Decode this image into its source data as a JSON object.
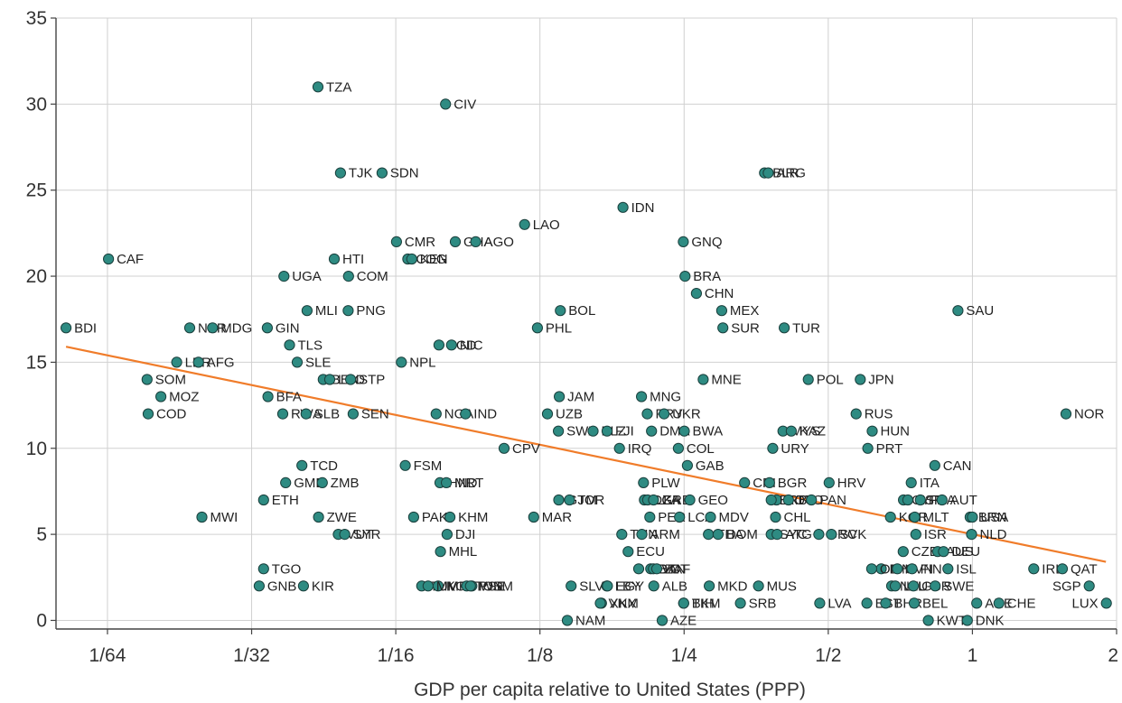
{
  "chart_data": {
    "type": "scatter",
    "title": "",
    "xlabel": "GDP per capita relative to United States (PPP)",
    "ylabel": "",
    "x_scale": "log2",
    "xlim": [
      0.0122,
      2
    ],
    "ylim": [
      -0.5,
      35
    ],
    "y_ticks": [
      0,
      5,
      10,
      15,
      20,
      25,
      30,
      35
    ],
    "x_ticks": [
      {
        "value": 0.015625,
        "label": "1/64"
      },
      {
        "value": 0.03125,
        "label": "1/32"
      },
      {
        "value": 0.0625,
        "label": "1/16"
      },
      {
        "value": 0.125,
        "label": "1/8"
      },
      {
        "value": 0.25,
        "label": "1/4"
      },
      {
        "value": 0.5,
        "label": "1/2"
      },
      {
        "value": 1,
        "label": "1"
      },
      {
        "value": 2,
        "label": "2"
      }
    ],
    "grid": true,
    "colors": {
      "points": "#2e8b82",
      "trend": "#f07c2a"
    },
    "trendline": {
      "x": [
        0.0128,
        1.9
      ],
      "y": [
        15.9,
        3.4
      ]
    },
    "points": [
      {
        "label": "BDI",
        "x": 0.0128,
        "y": 17
      },
      {
        "label": "CAF",
        "x": 0.0157,
        "y": 21
      },
      {
        "label": "SOM",
        "x": 0.0189,
        "y": 14
      },
      {
        "label": "MOZ",
        "x": 0.0202,
        "y": 13
      },
      {
        "label": "COD",
        "x": 0.019,
        "y": 12
      },
      {
        "label": "LBR",
        "x": 0.0218,
        "y": 15
      },
      {
        "label": "NER",
        "x": 0.0232,
        "y": 17
      },
      {
        "label": "AFG",
        "x": 0.0242,
        "y": 15
      },
      {
        "label": "MDG",
        "x": 0.0259,
        "y": 17
      },
      {
        "label": "MWI",
        "x": 0.0246,
        "y": 6
      },
      {
        "label": "GIN",
        "x": 0.0337,
        "y": 17
      },
      {
        "label": "BFA",
        "x": 0.0338,
        "y": 13
      },
      {
        "label": "RWA",
        "x": 0.0363,
        "y": 12
      },
      {
        "label": "GMB",
        "x": 0.0368,
        "y": 8
      },
      {
        "label": "ETH",
        "x": 0.0331,
        "y": 7
      },
      {
        "label": "TGO",
        "x": 0.0331,
        "y": 3
      },
      {
        "label": "GNB",
        "x": 0.0324,
        "y": 2
      },
      {
        "label": "UGA",
        "x": 0.0365,
        "y": 20
      },
      {
        "label": "TLS",
        "x": 0.0375,
        "y": 16
      },
      {
        "label": "SLE",
        "x": 0.0389,
        "y": 15
      },
      {
        "label": "MLI",
        "x": 0.0408,
        "y": 18
      },
      {
        "label": "BEN",
        "x": 0.0441,
        "y": 14
      },
      {
        "label": "LSO",
        "x": 0.0455,
        "y": 14
      },
      {
        "label": "SLB",
        "x": 0.0406,
        "y": 12
      },
      {
        "label": "TCD",
        "x": 0.0398,
        "y": 9
      },
      {
        "label": "ZMB",
        "x": 0.0439,
        "y": 8
      },
      {
        "label": "ZWE",
        "x": 0.0431,
        "y": 6
      },
      {
        "label": "KIR",
        "x": 0.0401,
        "y": 2
      },
      {
        "label": "TZA",
        "x": 0.043,
        "y": 31
      },
      {
        "label": "TJK",
        "x": 0.0479,
        "y": 26
      },
      {
        "label": "HTI",
        "x": 0.0465,
        "y": 21
      },
      {
        "label": "COM",
        "x": 0.0498,
        "y": 20
      },
      {
        "label": "PNG",
        "x": 0.0497,
        "y": 18
      },
      {
        "label": "STP",
        "x": 0.0503,
        "y": 14
      },
      {
        "label": "SEN",
        "x": 0.0509,
        "y": 12
      },
      {
        "label": "VUT",
        "x": 0.0474,
        "y": 5
      },
      {
        "label": "SYR",
        "x": 0.0489,
        "y": 5
      },
      {
        "label": "SDN",
        "x": 0.0585,
        "y": 26
      },
      {
        "label": "CMR",
        "x": 0.0627,
        "y": 22
      },
      {
        "label": "COG",
        "x": 0.0662,
        "y": 21
      },
      {
        "label": "KEN",
        "x": 0.0675,
        "y": 21
      },
      {
        "label": "NPL",
        "x": 0.0642,
        "y": 15
      },
      {
        "label": "FSM",
        "x": 0.0654,
        "y": 9
      },
      {
        "label": "PAK",
        "x": 0.0681,
        "y": 6
      },
      {
        "label": "TUV",
        "x": 0.0708,
        "y": 2
      },
      {
        "label": "CIV",
        "x": 0.0794,
        "y": 30
      },
      {
        "label": "GHA",
        "x": 0.0832,
        "y": 22
      },
      {
        "label": "AGO",
        "x": 0.0918,
        "y": 22
      },
      {
        "label": "BGD",
        "x": 0.0769,
        "y": 16
      },
      {
        "label": "NIC",
        "x": 0.0817,
        "y": 16
      },
      {
        "label": "NGA",
        "x": 0.0759,
        "y": 12
      },
      {
        "label": "IND",
        "x": 0.0874,
        "y": 12
      },
      {
        "label": "HND",
        "x": 0.0773,
        "y": 8
      },
      {
        "label": "MRT",
        "x": 0.0797,
        "y": 8
      },
      {
        "label": "KHM",
        "x": 0.0811,
        "y": 6
      },
      {
        "label": "DJI",
        "x": 0.08,
        "y": 5
      },
      {
        "label": "MHL",
        "x": 0.0775,
        "y": 4
      },
      {
        "label": "KGZ",
        "x": 0.0766,
        "y": 2
      },
      {
        "label": "MMR",
        "x": 0.073,
        "y": 2
      },
      {
        "label": "TON",
        "x": 0.0879,
        "y": 2
      },
      {
        "label": "WSM",
        "x": 0.0901,
        "y": 2
      },
      {
        "label": "PSE",
        "x": 0.0895,
        "y": 2
      },
      {
        "label": "LAO",
        "x": 0.1161,
        "y": 23
      },
      {
        "label": "BOL",
        "x": 0.1379,
        "y": 18
      },
      {
        "label": "PHL",
        "x": 0.1235,
        "y": 17
      },
      {
        "label": "JAM",
        "x": 0.1372,
        "y": 13
      },
      {
        "label": "UZB",
        "x": 0.1296,
        "y": 12
      },
      {
        "label": "SWZ",
        "x": 0.1366,
        "y": 11
      },
      {
        "label": "CPV",
        "x": 0.1052,
        "y": 10
      },
      {
        "label": "GTM",
        "x": 0.1368,
        "y": 7
      },
      {
        "label": "JOR",
        "x": 0.1441,
        "y": 7
      },
      {
        "label": "MAR",
        "x": 0.1213,
        "y": 6
      },
      {
        "label": "SLV",
        "x": 0.1452,
        "y": 2
      },
      {
        "label": "NAM",
        "x": 0.1426,
        "y": 0
      },
      {
        "label": "XKX",
        "x": 0.168,
        "y": 1
      },
      {
        "label": "VNM",
        "x": 0.1671,
        "y": 1
      },
      {
        "label": "BLZ",
        "x": 0.1614,
        "y": 11
      },
      {
        "label": "FJI",
        "x": 0.1726,
        "y": 11
      },
      {
        "label": "IRQ",
        "x": 0.1832,
        "y": 10
      },
      {
        "label": "IDN",
        "x": 0.1863,
        "y": 24
      },
      {
        "label": "TUN",
        "x": 0.1853,
        "y": 5
      },
      {
        "label": "ECU",
        "x": 0.191,
        "y": 4
      },
      {
        "label": "MDA",
        "x": 0.201,
        "y": 3
      },
      {
        "label": "LBY",
        "x": 0.1724,
        "y": 2
      },
      {
        "label": "EGY",
        "x": 0.1729,
        "y": 2
      },
      {
        "label": "MNG",
        "x": 0.2037,
        "y": 13
      },
      {
        "label": "PRY",
        "x": 0.2094,
        "y": 12
      },
      {
        "label": "UKR",
        "x": 0.227,
        "y": 12
      },
      {
        "label": "DMA",
        "x": 0.2137,
        "y": 11
      },
      {
        "label": "PLW",
        "x": 0.2056,
        "y": 8
      },
      {
        "label": "DZA",
        "x": 0.2065,
        "y": 7
      },
      {
        "label": "LKA",
        "x": 0.2098,
        "y": 7
      },
      {
        "label": "GRD",
        "x": 0.2158,
        "y": 7
      },
      {
        "label": "PER",
        "x": 0.212,
        "y": 6
      },
      {
        "label": "ARM",
        "x": 0.204,
        "y": 5
      },
      {
        "label": "BTN",
        "x": 0.2129,
        "y": 3
      },
      {
        "label": "VCT",
        "x": 0.2156,
        "y": 3
      },
      {
        "label": "ZAF",
        "x": 0.2192,
        "y": 3
      },
      {
        "label": "ALB",
        "x": 0.2161,
        "y": 2
      },
      {
        "label": "AZE",
        "x": 0.225,
        "y": 0
      },
      {
        "label": "GNQ",
        "x": 0.2491,
        "y": 22
      },
      {
        "label": "BRA",
        "x": 0.2511,
        "y": 20
      },
      {
        "label": "CHN",
        "x": 0.2652,
        "y": 19
      },
      {
        "label": "MNE",
        "x": 0.274,
        "y": 14
      },
      {
        "label": "BWA",
        "x": 0.2503,
        "y": 11
      },
      {
        "label": "COL",
        "x": 0.2432,
        "y": 10
      },
      {
        "label": "GAB",
        "x": 0.254,
        "y": 9
      },
      {
        "label": "GEO",
        "x": 0.257,
        "y": 7
      },
      {
        "label": "LCA",
        "x": 0.2446,
        "y": 6
      },
      {
        "label": "MDV",
        "x": 0.2838,
        "y": 6
      },
      {
        "label": "THA",
        "x": 0.281,
        "y": 5
      },
      {
        "label": "DOM",
        "x": 0.2944,
        "y": 5
      },
      {
        "label": "MKD",
        "x": 0.2821,
        "y": 2
      },
      {
        "label": "BIH",
        "x": 0.2495,
        "y": 1
      },
      {
        "label": "TKM",
        "x": 0.2495,
        "y": 1
      },
      {
        "label": "BLR",
        "x": 0.368,
        "y": 26
      },
      {
        "label": "ARG",
        "x": 0.3747,
        "y": 26
      },
      {
        "label": "MEX",
        "x": 0.2996,
        "y": 18
      },
      {
        "label": "SUR",
        "x": 0.3013,
        "y": 17
      },
      {
        "label": "TUR",
        "x": 0.4045,
        "y": 17
      },
      {
        "label": "POL",
        "x": 0.4542,
        "y": 14
      },
      {
        "label": "MYS",
        "x": 0.4022,
        "y": 11
      },
      {
        "label": "KAZ",
        "x": 0.4186,
        "y": 11
      },
      {
        "label": "URY",
        "x": 0.3829,
        "y": 10
      },
      {
        "label": "CRI",
        "x": 0.3344,
        "y": 8
      },
      {
        "label": "BGR",
        "x": 0.377,
        "y": 8
      },
      {
        "label": "ROU",
        "x": 0.39,
        "y": 7
      },
      {
        "label": "BRB",
        "x": 0.38,
        "y": 7
      },
      {
        "label": "TTO",
        "x": 0.413,
        "y": 7
      },
      {
        "label": "CHL",
        "x": 0.388,
        "y": 6
      },
      {
        "label": "SYC",
        "x": 0.38,
        "y": 5
      },
      {
        "label": "ATG",
        "x": 0.391,
        "y": 5
      },
      {
        "label": "MUS",
        "x": 0.3574,
        "y": 2
      },
      {
        "label": "SRB",
        "x": 0.3278,
        "y": 1
      },
      {
        "label": "HRV",
        "x": 0.502,
        "y": 8
      },
      {
        "label": "PAN",
        "x": 0.4611,
        "y": 7
      },
      {
        "label": "GRC",
        "x": 0.4779,
        "y": 5
      },
      {
        "label": "SVK",
        "x": 0.5076,
        "y": 5
      },
      {
        "label": "LVA",
        "x": 0.48,
        "y": 1
      },
      {
        "label": "JPN",
        "x": 0.5832,
        "y": 14
      },
      {
        "label": "RUS",
        "x": 0.5716,
        "y": 12
      },
      {
        "label": "HUN",
        "x": 0.6177,
        "y": 11
      },
      {
        "label": "PRT",
        "x": 0.6047,
        "y": 10
      },
      {
        "label": "CYP",
        "x": 0.7177,
        "y": 7
      },
      {
        "label": "ESP",
        "x": 0.733,
        "y": 7
      },
      {
        "label": "KOR",
        "x": 0.6744,
        "y": 6
      },
      {
        "label": "BHS",
        "x": 0.645,
        "y": 3
      },
      {
        "label": "OMN",
        "x": 0.616,
        "y": 3
      },
      {
        "label": "NZL",
        "x": 0.678,
        "y": 2
      },
      {
        "label": "EST",
        "x": 0.602,
        "y": 1
      },
      {
        "label": "LTU",
        "x": 0.69,
        "y": 2
      },
      {
        "label": "BHR",
        "x": 0.659,
        "y": 1
      },
      {
        "label": "ITA",
        "x": 0.745,
        "y": 8
      },
      {
        "label": "CAN",
        "x": 0.8345,
        "y": 9
      },
      {
        "label": "FRA",
        "x": 0.7786,
        "y": 7
      },
      {
        "label": "AUT",
        "x": 0.8642,
        "y": 7
      },
      {
        "label": "MLT",
        "x": 0.758,
        "y": 6
      },
      {
        "label": "ISR",
        "x": 0.762,
        "y": 5
      },
      {
        "label": "CZE",
        "x": 0.717,
        "y": 4
      },
      {
        "label": "AUS",
        "x": 0.846,
        "y": 4
      },
      {
        "label": "DEU",
        "x": 0.87,
        "y": 4
      },
      {
        "label": "SVN",
        "x": 0.697,
        "y": 3
      },
      {
        "label": "FIN",
        "x": 0.748,
        "y": 3
      },
      {
        "label": "ISL",
        "x": 0.889,
        "y": 3
      },
      {
        "label": "GBR",
        "x": 0.753,
        "y": 2
      },
      {
        "label": "SWE",
        "x": 0.836,
        "y": 2
      },
      {
        "label": "BEL",
        "x": 0.756,
        "y": 1
      },
      {
        "label": "KWT",
        "x": 0.809,
        "y": 0
      },
      {
        "label": "SAU",
        "x": 0.9329,
        "y": 18
      },
      {
        "label": "BRN",
        "x": 0.989,
        "y": 6
      },
      {
        "label": "USA",
        "x": 1.0,
        "y": 6
      },
      {
        "label": "NLD",
        "x": 0.996,
        "y": 5
      },
      {
        "label": "ARE",
        "x": 1.021,
        "y": 1
      },
      {
        "label": "CHE",
        "x": 1.136,
        "y": 1
      },
      {
        "label": "DNK",
        "x": 0.976,
        "y": 0
      },
      {
        "label": "IRL",
        "x": 1.343,
        "y": 3
      },
      {
        "label": "QAT",
        "x": 1.541,
        "y": 3
      },
      {
        "label": "NOR",
        "x": 1.568,
        "y": 12
      },
      {
        "label": "SGP",
        "x": 1.753,
        "y": 2
      },
      {
        "label": "LUX",
        "x": 1.904,
        "y": 1
      }
    ]
  }
}
